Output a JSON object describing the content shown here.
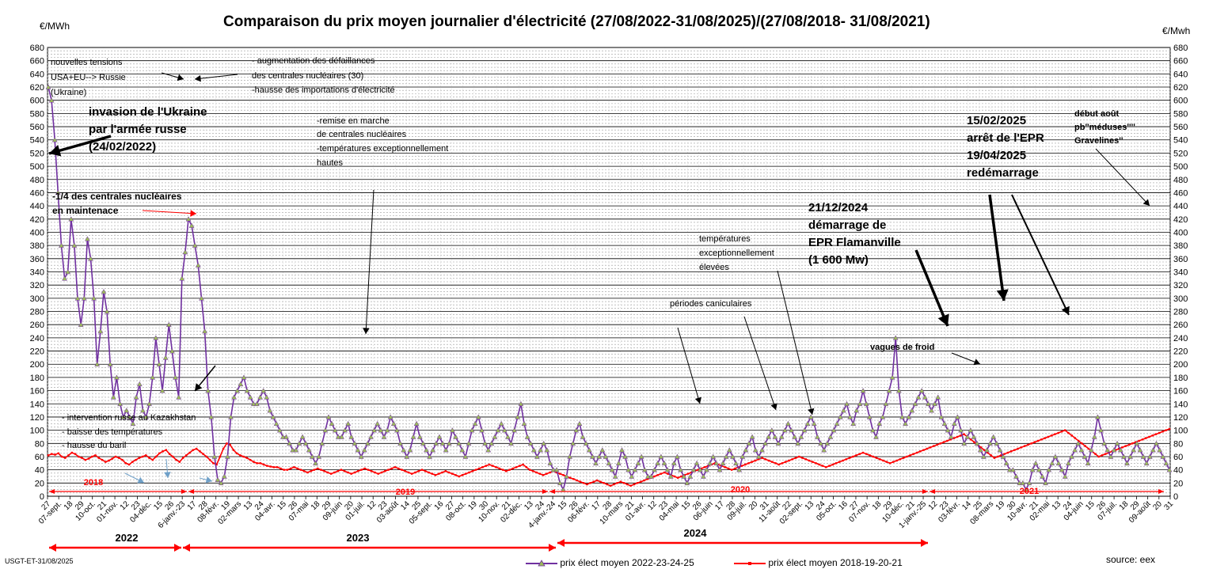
{
  "title": "Comparaison du prix moyen journalier d'électricité (27/08/2022-31/08/2025)/(27/08/2018-  31/08/2021)",
  "unit_left": "€/MWh",
  "unit_right": "€/Mwh",
  "credit": "USGT-ET-31/08/2025",
  "source": "source: eex",
  "colors": {
    "series_2022": "#7030a0",
    "series_2022_marker": "#9bbb59",
    "series_2018": "#ff0000",
    "period_2022": "#ff0000",
    "grid": "#000000"
  },
  "chart_data": {
    "type": "line",
    "ylim": [
      0,
      680
    ],
    "y_ticks": [
      0,
      20,
      40,
      60,
      80,
      100,
      120,
      140,
      160,
      180,
      200,
      220,
      240,
      260,
      280,
      300,
      320,
      340,
      360,
      380,
      400,
      420,
      440,
      460,
      480,
      500,
      520,
      540,
      560,
      580,
      600,
      620,
      640,
      660,
      680
    ],
    "grid": true,
    "legend_position": "bottom",
    "x_tick_labels": [
      "27",
      "07-sept.",
      "18",
      "29",
      "10-oct.",
      "21",
      "01-nov.",
      "12",
      "23",
      "04-déc.",
      "15",
      "26",
      "6-janv.-23",
      "17",
      "28",
      "08-févr.",
      "19",
      "02-mars",
      "13",
      "24",
      "04-avr.",
      "15",
      "26",
      "07-mai",
      "18",
      "29",
      "09-juin",
      "20",
      "01-juil.",
      "12",
      "23",
      "03-août",
      "14",
      "25",
      "05-sept.",
      "16",
      "27",
      "08-oct.",
      "19",
      "30",
      "10-nov.",
      "21",
      "02-déc.",
      "13",
      "24",
      "4-janv.-24",
      "15",
      "26",
      "06-févr.",
      "17",
      "28",
      "10-mars",
      "21",
      "01-avr.",
      "12",
      "23",
      "04-mai",
      "15",
      "26",
      "06-juin",
      "17",
      "28",
      "09-juil.",
      "20",
      "31",
      "11-août",
      "22",
      "02-sept.",
      "13",
      "24",
      "05-oct.",
      "16",
      "27",
      "07-nov.",
      "18",
      "29",
      "10-déc.",
      "21",
      "1-janv.-25",
      "12",
      "23",
      "03-févr.",
      "14",
      "25",
      "08-mars",
      "19",
      "30",
      "10-avr.",
      "21",
      "02-mai",
      "13",
      "24",
      "04-juin",
      "15",
      "26",
      "07-juil.",
      "18",
      "29",
      "09-août",
      "20",
      "31"
    ],
    "period_labels_2022_2025": [
      "2022",
      "2023",
      "2024"
    ],
    "period_labels_2018_2021": [
      "2018",
      "2019",
      "2020",
      "2021"
    ],
    "series": [
      {
        "name": "prix élect moyen 2022-23-24-25",
        "values": [
          620,
          600,
          540,
          460,
          380,
          330,
          340,
          420,
          380,
          300,
          260,
          300,
          390,
          360,
          300,
          200,
          250,
          310,
          280,
          200,
          150,
          180,
          140,
          120,
          130,
          120,
          110,
          150,
          170,
          130,
          120,
          140,
          180,
          240,
          200,
          160,
          210,
          260,
          220,
          180,
          150,
          330,
          370,
          420,
          410,
          380,
          350,
          300,
          250,
          160,
          120,
          60,
          25,
          20,
          30,
          60,
          120,
          150,
          160,
          170,
          180,
          160,
          150,
          140,
          140,
          150,
          160,
          150,
          130,
          120,
          110,
          100,
          90,
          90,
          80,
          70,
          70,
          80,
          90,
          80,
          70,
          60,
          50,
          60,
          80,
          100,
          120,
          110,
          100,
          90,
          90,
          100,
          110,
          90,
          80,
          70,
          60,
          70,
          80,
          90,
          100,
          110,
          100,
          90,
          100,
          120,
          110,
          100,
          80,
          70,
          60,
          70,
          90,
          110,
          90,
          80,
          70,
          60,
          70,
          80,
          90,
          80,
          70,
          80,
          100,
          90,
          80,
          70,
          60,
          80,
          100,
          110,
          120,
          100,
          80,
          70,
          80,
          90,
          100,
          110,
          100,
          90,
          80,
          100,
          120,
          140,
          110,
          90,
          80,
          70,
          60,
          70,
          80,
          70,
          50,
          40,
          40,
          20,
          10,
          30,
          60,
          80,
          100,
          110,
          90,
          80,
          70,
          60,
          50,
          60,
          70,
          60,
          50,
          40,
          30,
          50,
          70,
          60,
          40,
          30,
          40,
          50,
          60,
          40,
          30,
          30,
          40,
          50,
          60,
          50,
          40,
          30,
          50,
          60,
          40,
          30,
          20,
          30,
          40,
          50,
          40,
          30,
          40,
          50,
          60,
          50,
          40,
          50,
          60,
          70,
          60,
          50,
          40,
          60,
          70,
          80,
          90,
          70,
          60,
          70,
          80,
          90,
          100,
          90,
          80,
          90,
          100,
          110,
          100,
          90,
          80,
          90,
          100,
          110,
          120,
          110,
          90,
          80,
          70,
          80,
          90,
          100,
          110,
          120,
          130,
          140,
          120,
          110,
          130,
          140,
          160,
          140,
          120,
          100,
          90,
          110,
          120,
          140,
          160,
          180,
          240,
          160,
          120,
          110,
          120,
          130,
          140,
          150,
          160,
          150,
          140,
          130,
          140,
          150,
          120,
          110,
          100,
          90,
          110,
          120,
          100,
          80,
          90,
          100,
          90,
          80,
          70,
          60,
          70,
          80,
          90,
          80,
          70,
          60,
          50,
          40,
          40,
          30,
          20,
          20,
          10,
          20,
          40,
          50,
          40,
          30,
          20,
          40,
          50,
          60,
          50,
          40,
          30,
          50,
          60,
          70,
          80,
          70,
          60,
          50,
          70,
          90,
          120,
          100,
          80,
          70,
          60,
          70,
          80,
          70,
          60,
          50,
          60,
          70,
          80,
          70,
          60,
          50,
          60,
          70,
          80,
          70,
          60,
          50,
          40
        ]
      },
      {
        "name": "prix élect moyen 2018-19-20-21",
        "values": [
          62,
          64,
          63,
          65,
          60,
          58,
          62,
          66,
          64,
          60,
          58,
          55,
          57,
          60,
          62,
          58,
          55,
          52,
          54,
          57,
          60,
          58,
          55,
          50,
          48,
          52,
          55,
          58,
          60,
          62,
          58,
          55,
          60,
          65,
          68,
          70,
          64,
          60,
          55,
          52,
          58,
          62,
          66,
          70,
          72,
          68,
          64,
          60,
          55,
          50,
          48,
          60,
          72,
          80,
          78,
          70,
          65,
          62,
          60,
          58,
          55,
          52,
          50,
          50,
          48,
          46,
          45,
          44,
          44,
          42,
          40,
          40,
          42,
          44,
          42,
          40,
          38,
          36,
          38,
          40,
          42,
          40,
          38,
          36,
          34,
          36,
          38,
          40,
          38,
          36,
          34,
          36,
          38,
          40,
          42,
          40,
          38,
          36,
          34,
          36,
          38,
          40,
          42,
          44,
          42,
          40,
          38,
          36,
          34,
          36,
          38,
          40,
          38,
          36,
          34,
          32,
          34,
          36,
          38,
          36,
          34,
          32,
          30,
          32,
          34,
          36,
          38,
          40,
          42,
          44,
          46,
          48,
          46,
          44,
          42,
          40,
          38,
          40,
          42,
          44,
          46,
          48,
          44,
          40,
          38,
          36,
          34,
          32,
          34,
          36,
          38,
          36,
          34,
          32,
          30,
          28,
          26,
          24,
          22,
          20,
          18,
          20,
          22,
          24,
          22,
          20,
          18,
          16,
          18,
          20,
          22,
          20,
          18,
          16,
          18,
          20,
          22,
          24,
          26,
          28,
          30,
          32,
          34,
          36,
          34,
          32,
          30,
          28,
          30,
          32,
          34,
          36,
          38,
          40,
          42,
          44,
          46,
          48,
          50,
          48,
          46,
          44,
          42,
          40,
          42,
          44,
          46,
          48,
          50,
          52,
          54,
          56,
          58,
          56,
          54,
          52,
          50,
          48,
          50,
          52,
          54,
          56,
          58,
          60,
          58,
          56,
          54,
          52,
          50,
          48,
          46,
          44,
          46,
          48,
          50,
          52,
          54,
          56,
          58,
          60,
          62,
          64,
          66,
          64,
          62,
          60,
          58,
          56,
          54,
          52,
          50,
          52,
          54,
          56,
          58,
          60,
          62,
          64,
          66,
          68,
          70,
          72,
          74,
          76,
          78,
          80,
          82,
          84,
          86,
          88,
          90,
          92,
          94,
          90,
          86,
          82,
          78,
          74,
          70,
          66,
          62,
          58,
          60,
          62,
          64,
          66,
          68,
          70,
          72,
          74,
          76,
          78,
          80,
          82,
          84,
          86,
          88,
          90,
          92,
          94,
          96,
          98,
          100,
          96,
          92,
          88,
          84,
          80,
          76,
          72,
          68,
          64,
          60,
          62,
          64,
          66,
          68,
          70,
          72,
          74,
          76,
          78,
          80,
          82,
          84,
          86,
          88,
          90,
          92,
          94,
          96,
          98,
          100,
          102
        ]
      }
    ]
  },
  "annotations": {
    "a1": "nouvelles tensions",
    "a2": "USA+EU--> Russie",
    "a3": "(Ukraine)",
    "a4": "- augmentation des défaillances",
    "a5": "des centrales nucléaires (30)",
    "a6": "-hausse des importations d'électricité",
    "a7": "invasion de l'Ukraine",
    "a8": "par l'armée russe",
    "a9": "(24/02/2022)",
    "a10": "-remise en marche",
    "a11": "de centrales nucléaires",
    "a12": "-températures exceptionnellement",
    "a13": "hautes",
    "a14": "-1/4 des centrales nucléaires",
    "a15": "en maintenace",
    "a16": "- intervention russe au Kazakhstan",
    "a17": "- baisse des températures",
    "a18": "- hausse du baril",
    "a19": "températures",
    "a20": "exceptionnellement",
    "a21": "élevées",
    "a22": "périodes caniculaires",
    "a23": "21/12/2024",
    "a24": "démarrage de",
    "a25": "EPR Flamanville",
    "a26": "(1 600 Mw)",
    "a27": "15/02/2025",
    "a28": "arrêt de l'EPR",
    "a29": "19/04/2025",
    "a30": "redémarrage",
    "a31": "début août",
    "a32": "pb''méduses''''",
    "a33": "Gravelines''",
    "a34": "vagues de froid"
  }
}
